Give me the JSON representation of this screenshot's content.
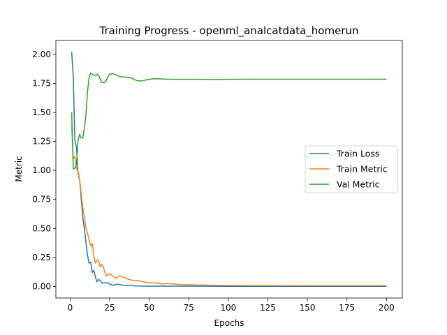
{
  "chart_data": {
    "type": "line",
    "title": "Training Progress - openml_analcatdata_homerun",
    "xlabel": "Epochs",
    "ylabel": "Metric",
    "xlim": [
      -9,
      210
    ],
    "ylim": [
      -0.1,
      2.12
    ],
    "xticks": [
      0,
      25,
      50,
      75,
      100,
      125,
      150,
      175,
      200
    ],
    "yticks": [
      0.0,
      0.25,
      0.5,
      0.75,
      1.0,
      1.25,
      1.5,
      1.75,
      2.0
    ],
    "xtick_labels": [
      "0",
      "25",
      "50",
      "75",
      "100",
      "125",
      "150",
      "175",
      "200"
    ],
    "ytick_labels": [
      "0.00",
      "0.25",
      "0.50",
      "0.75",
      "1.00",
      "1.25",
      "1.50",
      "1.75",
      "2.00"
    ],
    "grid": false,
    "legend_position": "center-right",
    "series": [
      {
        "name": "Train Loss",
        "color": "#1f77b4",
        "points": [
          [
            1,
            2.02
          ],
          [
            2,
            1.8
          ],
          [
            3,
            1.26
          ],
          [
            4,
            1.2
          ],
          [
            5,
            0.98
          ],
          [
            6,
            0.92
          ],
          [
            7,
            0.76
          ],
          [
            8,
            0.6
          ],
          [
            9,
            0.5
          ],
          [
            10,
            0.38
          ],
          [
            11,
            0.27
          ],
          [
            12,
            0.2
          ],
          [
            13,
            0.21
          ],
          [
            14,
            0.12
          ],
          [
            15,
            0.14
          ],
          [
            16,
            0.08
          ],
          [
            17,
            0.04
          ],
          [
            18,
            0.06
          ],
          [
            19,
            0.05
          ],
          [
            20,
            0.03
          ],
          [
            22,
            0.03
          ],
          [
            24,
            0.03
          ],
          [
            25,
            0.02
          ],
          [
            27,
            0.01
          ],
          [
            30,
            0.02
          ],
          [
            33,
            0.01
          ],
          [
            36,
            0.01
          ],
          [
            40,
            0.005
          ],
          [
            45,
            0.003
          ],
          [
            50,
            0.002
          ],
          [
            60,
            0.002
          ],
          [
            80,
            0.002
          ],
          [
            100,
            0.001
          ],
          [
            120,
            0.001
          ],
          [
            150,
            0.001
          ],
          [
            175,
            0.001
          ],
          [
            200,
            0.001
          ]
        ]
      },
      {
        "name": "Train Metric",
        "color": "#ff7f0e",
        "points": [
          [
            1,
            1.38
          ],
          [
            2,
            1.1
          ],
          [
            3,
            1.12
          ],
          [
            4,
            1.02
          ],
          [
            5,
            0.99
          ],
          [
            6,
            0.93
          ],
          [
            7,
            0.8
          ],
          [
            8,
            0.68
          ],
          [
            9,
            0.6
          ],
          [
            10,
            0.5
          ],
          [
            11,
            0.46
          ],
          [
            12,
            0.4
          ],
          [
            13,
            0.35
          ],
          [
            14,
            0.37
          ],
          [
            15,
            0.26
          ],
          [
            16,
            0.2
          ],
          [
            17,
            0.23
          ],
          [
            18,
            0.22
          ],
          [
            19,
            0.17
          ],
          [
            20,
            0.19
          ],
          [
            21,
            0.17
          ],
          [
            22,
            0.12
          ],
          [
            23,
            0.09
          ],
          [
            25,
            0.11
          ],
          [
            27,
            0.09
          ],
          [
            29,
            0.07
          ],
          [
            31,
            0.09
          ],
          [
            34,
            0.08
          ],
          [
            37,
            0.06
          ],
          [
            40,
            0.05
          ],
          [
            43,
            0.05
          ],
          [
            46,
            0.04
          ],
          [
            50,
            0.03
          ],
          [
            55,
            0.03
          ],
          [
            58,
            0.02
          ],
          [
            62,
            0.025
          ],
          [
            66,
            0.02
          ],
          [
            70,
            0.015
          ],
          [
            75,
            0.015
          ],
          [
            80,
            0.012
          ],
          [
            90,
            0.01
          ],
          [
            100,
            0.008
          ],
          [
            120,
            0.007
          ],
          [
            150,
            0.006
          ],
          [
            175,
            0.006
          ],
          [
            200,
            0.006
          ]
        ]
      },
      {
        "name": "Val Metric",
        "color": "#2ca02c",
        "points": [
          [
            1,
            1.5
          ],
          [
            2,
            1.01
          ],
          [
            3,
            1.02
          ],
          [
            4,
            1.05
          ],
          [
            5,
            1.26
          ],
          [
            6,
            1.31
          ],
          [
            7,
            1.28
          ],
          [
            8,
            1.28
          ],
          [
            9,
            1.36
          ],
          [
            10,
            1.48
          ],
          [
            11,
            1.68
          ],
          [
            12,
            1.8
          ],
          [
            13,
            1.84
          ],
          [
            14,
            1.83
          ],
          [
            15,
            1.82
          ],
          [
            16,
            1.82
          ],
          [
            17,
            1.83
          ],
          [
            18,
            1.82
          ],
          [
            19,
            1.79
          ],
          [
            20,
            1.76
          ],
          [
            21,
            1.755
          ],
          [
            22,
            1.76
          ],
          [
            23,
            1.78
          ],
          [
            24,
            1.81
          ],
          [
            25,
            1.83
          ],
          [
            27,
            1.835
          ],
          [
            29,
            1.825
          ],
          [
            31,
            1.81
          ],
          [
            33,
            1.805
          ],
          [
            36,
            1.805
          ],
          [
            39,
            1.795
          ],
          [
            42,
            1.775
          ],
          [
            45,
            1.77
          ],
          [
            48,
            1.78
          ],
          [
            52,
            1.79
          ],
          [
            56,
            1.79
          ],
          [
            60,
            1.787
          ],
          [
            65,
            1.785
          ],
          [
            70,
            1.785
          ],
          [
            80,
            1.785
          ],
          [
            90,
            1.783
          ],
          [
            100,
            1.785
          ],
          [
            110,
            1.786
          ],
          [
            120,
            1.786
          ],
          [
            140,
            1.786
          ],
          [
            160,
            1.786
          ],
          [
            180,
            1.786
          ],
          [
            200,
            1.786
          ]
        ]
      }
    ]
  }
}
